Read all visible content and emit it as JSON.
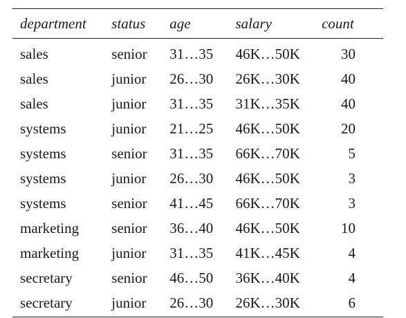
{
  "table": {
    "headers": [
      "department",
      "status",
      "age",
      "salary",
      "count"
    ],
    "rows": [
      [
        "sales",
        "senior",
        "31…35",
        "46K…50K",
        "30"
      ],
      [
        "sales",
        "junior",
        "26…30",
        "26K…30K",
        "40"
      ],
      [
        "sales",
        "junior",
        "31…35",
        "31K…35K",
        "40"
      ],
      [
        "systems",
        "junior",
        "21…25",
        "46K…50K",
        "20"
      ],
      [
        "systems",
        "senior",
        "31…35",
        "66K…70K",
        "5"
      ],
      [
        "systems",
        "junior",
        "26…30",
        "46K…50K",
        "3"
      ],
      [
        "systems",
        "senior",
        "41…45",
        "66K…70K",
        "3"
      ],
      [
        "marketing",
        "senior",
        "36…40",
        "46K…50K",
        "10"
      ],
      [
        "marketing",
        "junior",
        "31…35",
        "41K…45K",
        "4"
      ],
      [
        "secretary",
        "senior",
        "46…50",
        "36K…40K",
        "4"
      ],
      [
        "secretary",
        "junior",
        "26…30",
        "26K…30K",
        "6"
      ]
    ]
  }
}
